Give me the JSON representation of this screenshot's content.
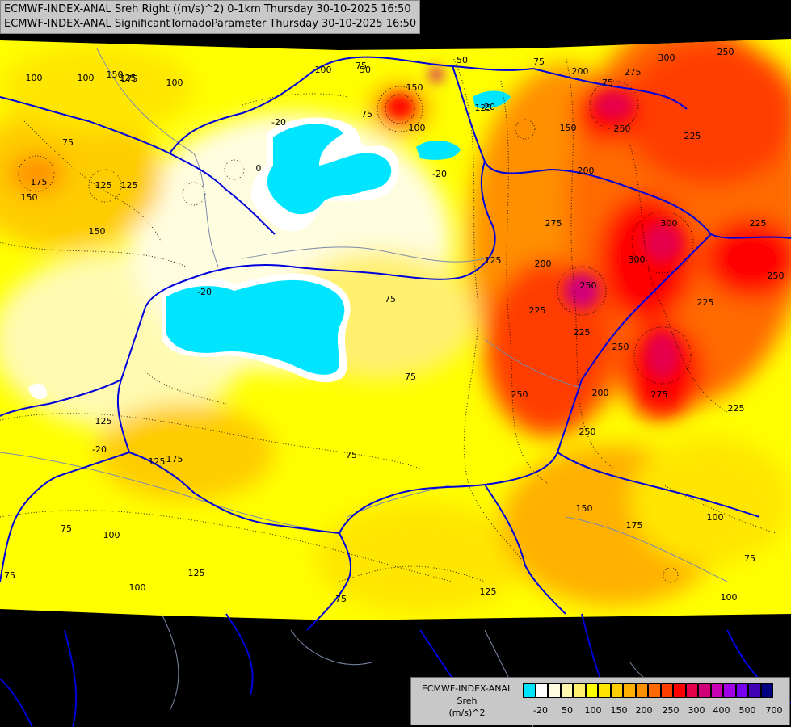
{
  "header": {
    "line1": "ECMWF-INDEX-ANAL Sreh Right ((m/s)^2) 0-1km Thursday 30-10-2025 16:50",
    "line2": "ECMWF-INDEX-ANAL SignificantTornadoParameter Thursday 30-10-2025 16:50"
  },
  "legend": {
    "title_line1": "ECMWF-INDEX-ANAL",
    "title_line2": "Sreh",
    "title_line3": "(m/s)^2",
    "colors": [
      "#00e5ff",
      "#ffffff",
      "#fffde0",
      "#fffab0",
      "#fff070",
      "#ffff00",
      "#ffe600",
      "#ffcc00",
      "#ffb000",
      "#ff9000",
      "#ff6a00",
      "#ff3c00",
      "#ff0000",
      "#e6004c",
      "#d00078",
      "#c800b4",
      "#a000e6",
      "#7800f0",
      "#4000b4",
      "#000080"
    ],
    "tick_labels": [
      "-20",
      "50",
      "100",
      "150",
      "200",
      "250",
      "300",
      "400",
      "500",
      "700"
    ]
  },
  "map": {
    "contour_labels": [
      "250",
      "275",
      "300",
      "225",
      "250",
      "200",
      "150",
      "75",
      "50",
      "100",
      "150",
      "125",
      "100",
      "100",
      "125",
      "100",
      "75",
      "175",
      "150",
      "125",
      "125",
      "175",
      "150",
      "200",
      "225",
      "250",
      "275",
      "250",
      "225",
      "250",
      "200",
      "250",
      "300",
      "300",
      "275",
      "225",
      "225",
      "250",
      "225",
      "200",
      "175",
      "150",
      "125",
      "100",
      "100",
      "75",
      "75",
      "75",
      "75",
      "175",
      "125",
      "125",
      "75",
      "75",
      "125",
      "125",
      "100",
      "75",
      "75",
      "100",
      "150",
      "75",
      "75",
      "0",
      "-20",
      "-20",
      "-20",
      "-20",
      "-20",
      "100",
      "50"
    ]
  }
}
